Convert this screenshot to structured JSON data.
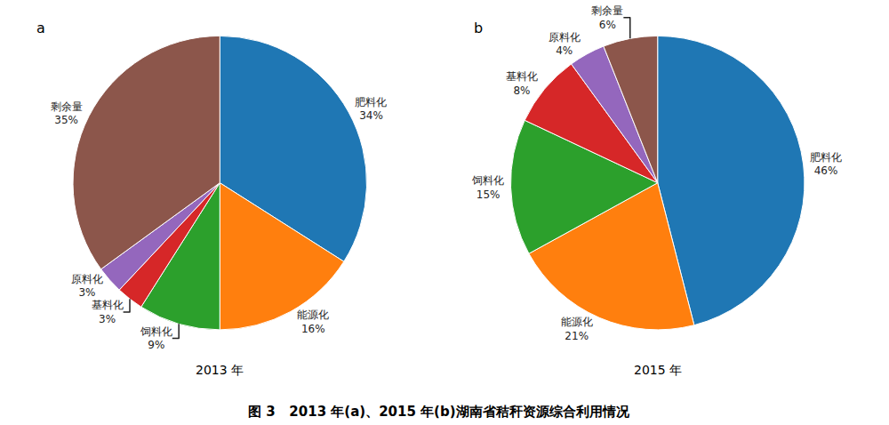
{
  "chart_data": [
    {
      "type": "pie",
      "title": "a",
      "subtitle": "2013 年",
      "categories": [
        "肥料化",
        "能源化",
        "饲料化",
        "基料化",
        "原料化",
        "剩余量"
      ],
      "values": [
        34,
        16,
        9,
        3,
        3,
        35
      ],
      "value_labels": [
        "34%",
        "16%",
        "9%",
        "3%",
        "3%",
        "35%"
      ]
    },
    {
      "type": "pie",
      "title": "b",
      "subtitle": "2015 年",
      "categories": [
        "肥料化",
        "能源化",
        "饲料化",
        "基料化",
        "原料化",
        "剩余量"
      ],
      "values": [
        46,
        21,
        15,
        8,
        4,
        6
      ],
      "value_labels": [
        "46%",
        "21%",
        "15%",
        "8%",
        "4%",
        "6%"
      ]
    }
  ],
  "title": "图 3   2013 年(a)、2015 年(b)湖南省秸秆资源综合利用情况"
}
